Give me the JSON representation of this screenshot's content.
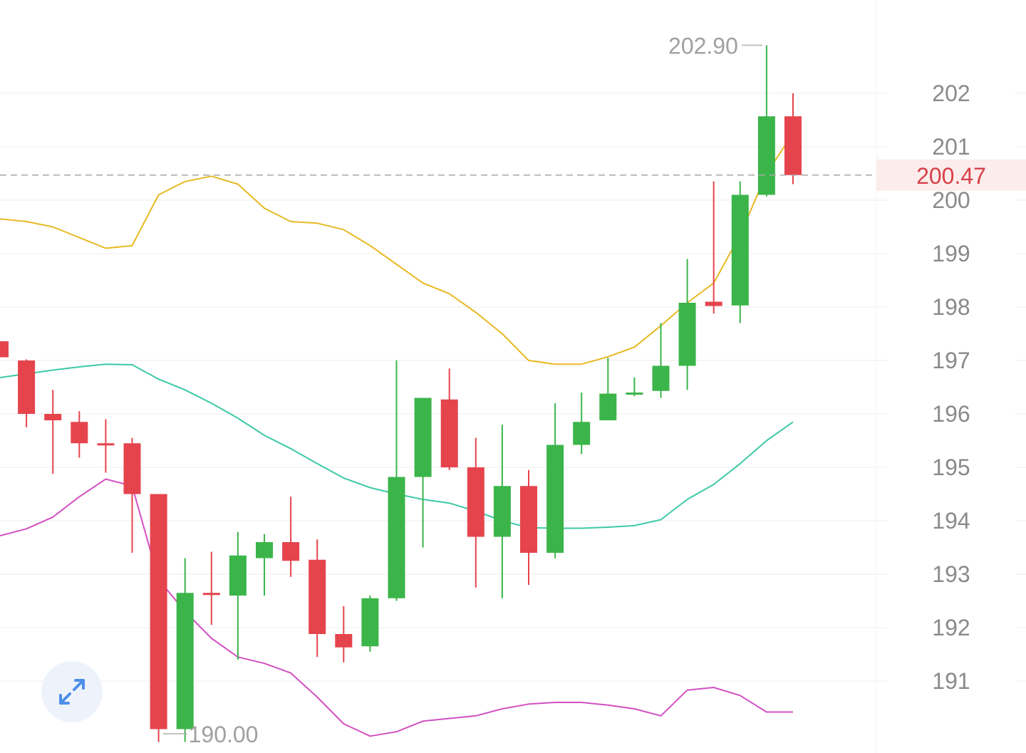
{
  "chart_data": {
    "type": "candlestick",
    "y_axis": {
      "ticks": [
        "191",
        "192",
        "193",
        "194",
        "195",
        "196",
        "197",
        "198",
        "199",
        "200",
        "201",
        "202"
      ],
      "range": [
        189.6,
        203.5
      ],
      "position": "right"
    },
    "grid": true,
    "last_price": "200.47",
    "high_marker": "202.90",
    "low_marker": "190.00",
    "candles": [
      {
        "o": 197.36,
        "h": 197.36,
        "l": 197.06,
        "c": 197.06
      },
      {
        "o": 197.0,
        "h": 197.02,
        "l": 195.75,
        "c": 196.0
      },
      {
        "o": 196.0,
        "h": 196.45,
        "l": 194.88,
        "c": 195.88
      },
      {
        "o": 195.85,
        "h": 196.05,
        "l": 195.18,
        "c": 195.45
      },
      {
        "o": 195.45,
        "h": 195.9,
        "l": 194.9,
        "c": 195.43
      },
      {
        "o": 195.45,
        "h": 195.55,
        "l": 193.4,
        "c": 194.5
      },
      {
        "o": 194.5,
        "h": 194.5,
        "l": 189.86,
        "c": 190.1
      },
      {
        "o": 190.1,
        "h": 193.3,
        "l": 189.86,
        "c": 192.65
      },
      {
        "o": 192.65,
        "h": 193.42,
        "l": 192.05,
        "c": 192.62
      },
      {
        "o": 192.6,
        "h": 193.79,
        "l": 191.4,
        "c": 193.35
      },
      {
        "o": 193.3,
        "h": 193.75,
        "l": 192.6,
        "c": 193.6
      },
      {
        "o": 193.6,
        "h": 194.45,
        "l": 192.95,
        "c": 193.25
      },
      {
        "o": 193.27,
        "h": 193.65,
        "l": 191.45,
        "c": 191.88
      },
      {
        "o": 191.88,
        "h": 192.4,
        "l": 191.35,
        "c": 191.63
      },
      {
        "o": 191.65,
        "h": 192.6,
        "l": 191.55,
        "c": 192.55
      },
      {
        "o": 192.55,
        "h": 197.0,
        "l": 192.5,
        "c": 194.82
      },
      {
        "o": 194.82,
        "h": 196.3,
        "l": 193.5,
        "c": 196.3
      },
      {
        "o": 196.27,
        "h": 196.85,
        "l": 194.95,
        "c": 195.0
      },
      {
        "o": 195.0,
        "h": 195.55,
        "l": 192.75,
        "c": 193.7
      },
      {
        "o": 193.7,
        "h": 195.8,
        "l": 192.55,
        "c": 194.65
      },
      {
        "o": 194.65,
        "h": 194.95,
        "l": 192.8,
        "c": 193.4
      },
      {
        "o": 193.4,
        "h": 196.2,
        "l": 193.3,
        "c": 195.42
      },
      {
        "o": 195.42,
        "h": 196.4,
        "l": 195.25,
        "c": 195.85
      },
      {
        "o": 195.88,
        "h": 197.05,
        "l": 195.88,
        "c": 196.38
      },
      {
        "o": 196.38,
        "h": 196.68,
        "l": 196.33,
        "c": 196.4
      },
      {
        "o": 196.43,
        "h": 197.7,
        "l": 196.3,
        "c": 196.9
      },
      {
        "o": 196.9,
        "h": 198.9,
        "l": 196.45,
        "c": 198.08
      },
      {
        "o": 198.1,
        "h": 200.35,
        "l": 197.88,
        "c": 198.02
      },
      {
        "o": 198.03,
        "h": 200.35,
        "l": 197.7,
        "c": 200.1
      },
      {
        "o": 200.1,
        "h": 202.9,
        "l": 200.07,
        "c": 201.57
      },
      {
        "o": 201.57,
        "h": 202.0,
        "l": 200.3,
        "c": 200.47
      }
    ],
    "bands": {
      "upper": [
        199.65,
        199.6,
        199.5,
        199.3,
        199.1,
        199.15,
        200.1,
        200.35,
        200.45,
        200.3,
        199.85,
        199.6,
        199.57,
        199.45,
        199.15,
        198.8,
        198.45,
        198.25,
        197.9,
        197.5,
        197.0,
        196.93,
        196.93,
        197.07,
        197.25,
        197.65,
        198.08,
        198.45,
        199.35,
        200.5,
        201.25
      ],
      "middle": [
        196.68,
        196.75,
        196.82,
        196.88,
        196.93,
        196.92,
        196.65,
        196.45,
        196.2,
        195.92,
        195.6,
        195.35,
        195.07,
        194.8,
        194.62,
        194.5,
        194.4,
        194.33,
        194.18,
        194.0,
        193.87,
        193.86,
        193.86,
        193.88,
        193.91,
        194.02,
        194.4,
        194.68,
        195.07,
        195.5,
        195.85
      ],
      "lower": [
        193.72,
        193.85,
        194.07,
        194.45,
        194.78,
        194.65,
        192.9,
        192.3,
        191.8,
        191.45,
        191.33,
        191.15,
        190.7,
        190.2,
        189.97,
        190.05,
        190.25,
        190.3,
        190.35,
        190.48,
        190.57,
        190.6,
        190.6,
        190.55,
        190.48,
        190.35,
        190.83,
        190.88,
        190.73,
        190.42,
        190.42
      ]
    }
  },
  "colors": {
    "up": "#3bb54a",
    "down": "#e5444d",
    "upper_band": "#e8b923",
    "middle_band": "#3ec9a7",
    "lower_band": "#d350c2",
    "grid": "#ececec",
    "last_line": "#a6a6a6",
    "last_label": "#d6414a",
    "last_label_bg": "#fdecec",
    "axis_text": "#8a8a8a",
    "expand_icon": "#4d8fe8"
  },
  "controls": {
    "expand_icon": "expand-arrows-icon"
  }
}
